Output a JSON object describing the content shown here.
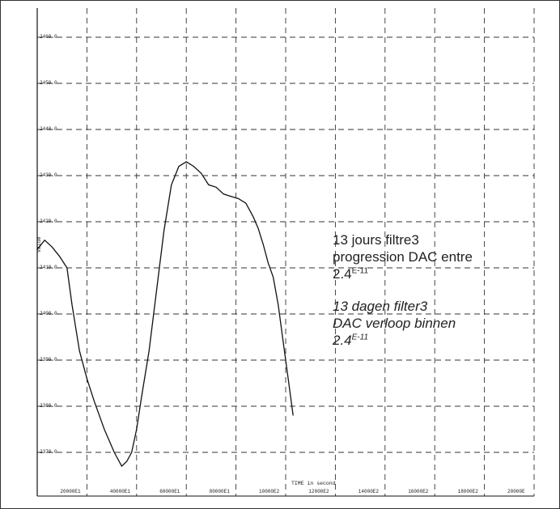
{
  "chart_data": {
    "type": "line",
    "xlabel": "TIME in second",
    "ylabel": "value",
    "xlim": [
      0,
      200000
    ],
    "ylim": [
      2265,
      2462
    ],
    "y_ticks": [
      2460,
      2450,
      2440,
      2430,
      2420,
      2410,
      2400,
      2390,
      2380,
      2370
    ],
    "y_tick_labels": [
      "2460.0",
      "2450.0",
      "2440.0",
      "2430.0",
      "2420.0",
      "2410.0",
      "2400.0",
      "2390.0",
      "2380.0",
      "2370.0"
    ],
    "x_ticks": [
      20000,
      40000,
      60000,
      80000,
      100000,
      120000,
      140000,
      160000,
      180000,
      200000
    ],
    "x_tick_labels": [
      "20000E1",
      "40000E1",
      "60000E1",
      "80000E1",
      "10000E2",
      "12000E2",
      "14000E2",
      "16000E2",
      "18000E2",
      "20000E"
    ],
    "grid": true,
    "series": [
      {
        "x": [
          0,
          3000,
          6000,
          9000,
          12000,
          14000,
          17000,
          20000,
          23000,
          27000,
          31000,
          34000,
          36000,
          38000,
          40000,
          42000,
          45000,
          48000,
          51000,
          54000,
          57000,
          60000,
          63000,
          66000,
          69000,
          72000,
          75000,
          78000,
          81000,
          84000,
          87000,
          89000,
          91000,
          93000,
          95000,
          97000,
          99000,
          101000,
          103000
        ],
        "y": [
          2414.0,
          2416.0,
          2414.5,
          2412.5,
          2410.0,
          2402.0,
          2392.0,
          2386.0,
          2381.0,
          2375.0,
          2370.0,
          2367.0,
          2368.0,
          2370.0,
          2375.0,
          2382.0,
          2392.0,
          2405.0,
          2418.0,
          2428.0,
          2432.0,
          2433.0,
          2432.0,
          2430.5,
          2428.0,
          2427.5,
          2426.0,
          2425.5,
          2425.0,
          2424.0,
          2421.0,
          2418.5,
          2415.0,
          2411.0,
          2408.0,
          2402.0,
          2394.0,
          2386.0,
          2378.0
        ]
      }
    ],
    "annotations": {
      "fr_line1": "13 jours filtre3",
      "fr_line2": "progression DAC entre",
      "fr_line3": "2.4",
      "fr_sup": "E-11",
      "nl_line1": "13 dagen filter3",
      "nl_line2": "DAC verloop binnen",
      "nl_line3": "2.4",
      "nl_sup": "E-11"
    }
  }
}
